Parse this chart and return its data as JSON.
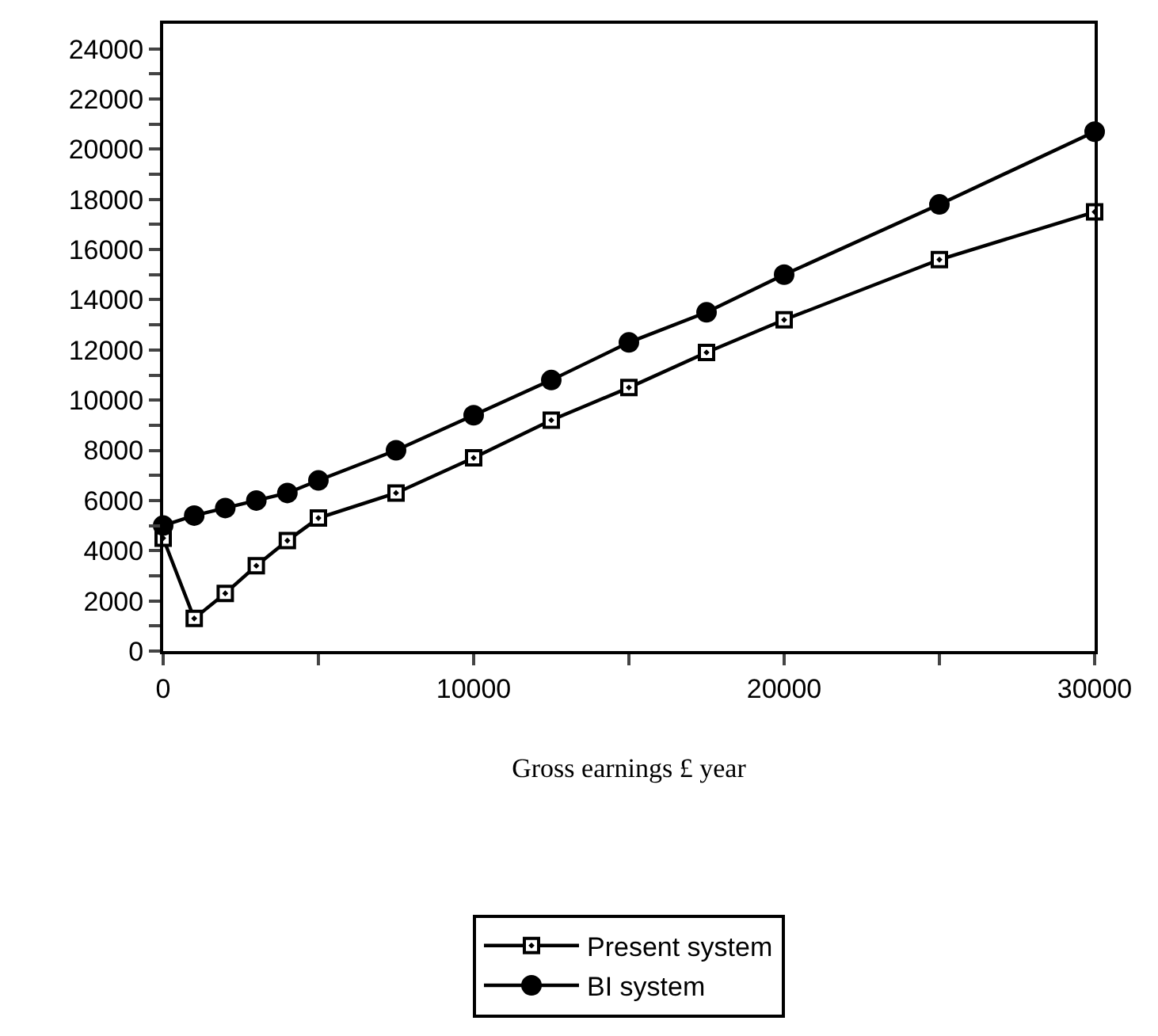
{
  "chart_data": {
    "type": "line",
    "xlabel": "Gross earnings £ year",
    "x": [
      0,
      1000,
      2000,
      3000,
      4000,
      5000,
      7500,
      10000,
      12500,
      15000,
      17500,
      20000,
      25000,
      30000
    ],
    "series": [
      {
        "name": "Present system",
        "color": "#000000",
        "marker": "square",
        "values": [
          4500,
          1300,
          2300,
          3400,
          4400,
          5300,
          6300,
          7700,
          9200,
          10500,
          11900,
          13200,
          15600,
          17500
        ]
      },
      {
        "name": "BI system",
        "color": "#000000",
        "marker": "circle",
        "values": [
          5000,
          5400,
          5700,
          6000,
          6300,
          6800,
          8000,
          9400,
          10800,
          12300,
          13500,
          15000,
          17800,
          20700
        ]
      }
    ],
    "xlim": [
      0,
      30000
    ],
    "xticks": [
      0,
      {
        "value": 5000,
        "label": null
      },
      10000,
      {
        "value": 15000,
        "label": null
      },
      20000,
      {
        "value": 25000,
        "label": null
      },
      30000
    ],
    "ylim": [
      0,
      25000
    ],
    "yticks": [
      0,
      {
        "value": 1000,
        "label": null
      },
      2000,
      {
        "value": 3000,
        "label": null
      },
      4000,
      {
        "value": 5000,
        "label": null
      },
      6000,
      {
        "value": 7000,
        "label": null
      },
      8000,
      {
        "value": 9000,
        "label": null
      },
      10000,
      {
        "value": 11000,
        "label": null
      },
      12000,
      {
        "value": 13000,
        "label": null
      },
      14000,
      {
        "value": 15000,
        "label": null
      },
      16000,
      {
        "value": 17000,
        "label": null
      },
      18000,
      {
        "value": 19000,
        "label": null
      },
      20000,
      {
        "value": 21000,
        "label": null
      },
      22000,
      {
        "value": 23000,
        "label": null
      },
      24000
    ],
    "legend": "bottom",
    "line_style": "solid"
  }
}
